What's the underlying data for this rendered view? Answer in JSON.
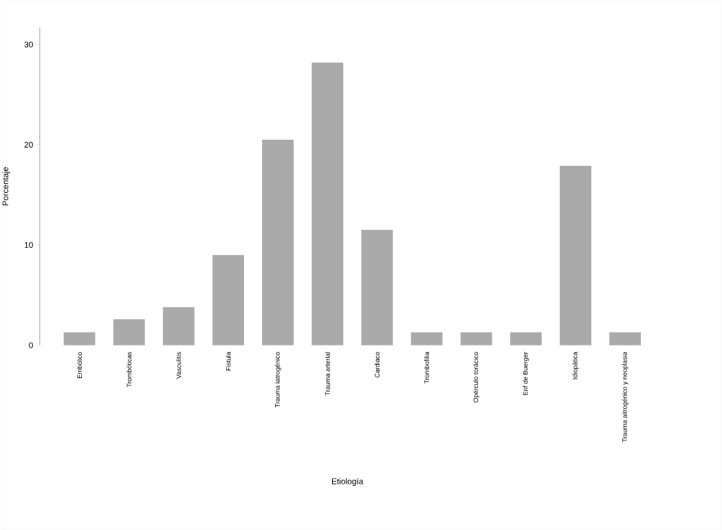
{
  "chart_data": {
    "type": "bar",
    "xlabel": "Etiología",
    "ylabel": "Porcentaje",
    "categories": [
      "Embólico",
      "Trombóticas",
      "Vasculitis",
      "Fistula",
      "Trauma iatrogénico",
      "Trauma arterial",
      "Cardiaco",
      "Trombofilia",
      "Opérculo torácico",
      "Enf de Buerger",
      "Idiopática",
      "Trauma aitrogénico y neoplasia"
    ],
    "values": [
      1.3,
      2.6,
      3.8,
      9.0,
      20.5,
      28.2,
      11.5,
      1.3,
      1.3,
      1.3,
      17.9,
      1.3
    ],
    "color": "#aaaaaa",
    "ylim": [
      0,
      31.7
    ],
    "yticks": [
      0,
      10,
      20,
      30
    ],
    "grid": false
  }
}
